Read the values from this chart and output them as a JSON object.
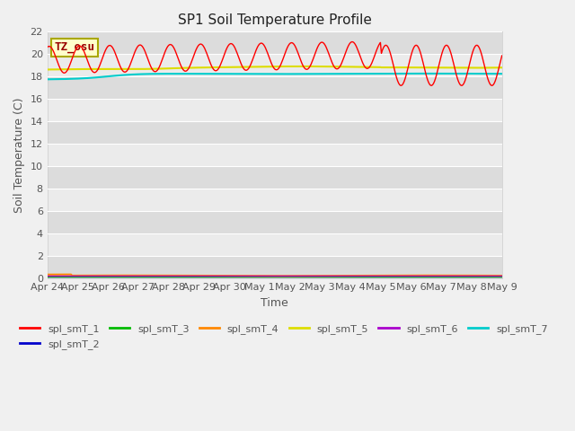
{
  "title": "SP1 Soil Temperature Profile",
  "xlabel": "Time",
  "ylabel": "Soil Temperature (C)",
  "ylim": [
    0,
    22
  ],
  "yticks": [
    0,
    2,
    4,
    6,
    8,
    10,
    12,
    14,
    16,
    18,
    20,
    22
  ],
  "x_labels": [
    "Apr 24",
    "Apr 25",
    "Apr 26",
    "Apr 27",
    "Apr 28",
    "Apr 29",
    "Apr 30",
    "May 1",
    "May 2",
    "May 3",
    "May 4",
    "May 5",
    "May 6",
    "May 7",
    "May 8",
    "May 9"
  ],
  "n_ticks": 16,
  "fig_bg_color": "#f0f0f0",
  "band_colors": [
    "#dcdcdc",
    "#ebebeb"
  ],
  "series_colors": {
    "spl_smT_1": "#ff0000",
    "spl_smT_2": "#0000cc",
    "spl_smT_3": "#00bb00",
    "spl_smT_4": "#ff8800",
    "spl_smT_5": "#dddd00",
    "spl_smT_6": "#aa00cc",
    "spl_smT_7": "#00cccc"
  },
  "legend_labels": [
    "spl_smT_1",
    "spl_smT_2",
    "spl_smT_3",
    "spl_smT_4",
    "spl_smT_5",
    "spl_smT_6",
    "spl_smT_7"
  ],
  "annotation_text": "TZ_osu",
  "annotation_color": "#990000",
  "annotation_bg": "#ffffcc",
  "annotation_border": "#aaa800"
}
